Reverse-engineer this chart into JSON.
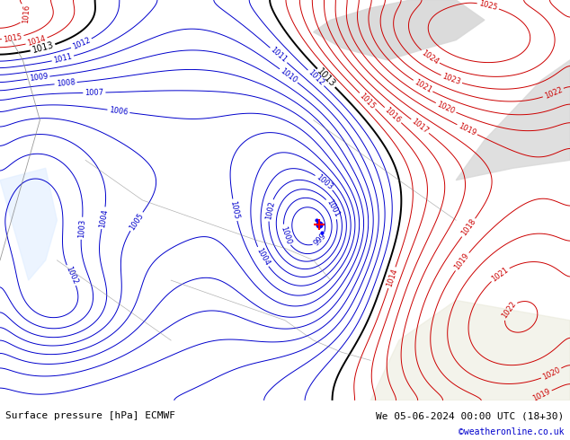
{
  "title_left": "Surface pressure [hPa] ECMWF",
  "title_right": "We 05-06-2024 00:00 UTC (18+30)",
  "credit": "©weatheronline.co.uk",
  "bg_color": "#c8e8a0",
  "land_color": "#c8e8a0",
  "gray_area_color": "#d8d8d8",
  "white_area_color": "#f0f0f0",
  "blue_contour_color": "#0000cc",
  "red_contour_color": "#cc0000",
  "black_contour_color": "#000000",
  "title_color": "#000000",
  "credit_color": "#0000cc",
  "figsize": [
    6.34,
    4.9
  ],
  "dpi": 100,
  "label_fontsize": 6,
  "title_fontsize": 8,
  "credit_fontsize": 7
}
